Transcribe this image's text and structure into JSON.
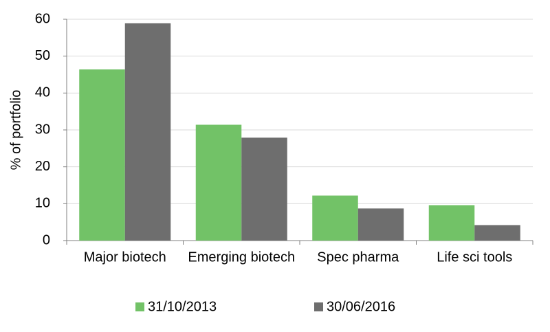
{
  "chart_data": {
    "type": "bar",
    "y_label": "% of portfolio",
    "categories": [
      "Major biotech",
      "Emerging biotech",
      "Spec pharma",
      "Life sci tools"
    ],
    "series": [
      {
        "name": "31/10/2013",
        "color": "#72c267",
        "values": [
          46.4,
          31.4,
          12.2,
          9.6
        ]
      },
      {
        "name": "30/06/2016",
        "color": "#6e6e6e",
        "values": [
          58.9,
          27.9,
          8.7,
          4.2
        ]
      }
    ],
    "ylim": [
      0,
      60
    ],
    "yticks": [
      0,
      10,
      20,
      30,
      40,
      50,
      60
    ],
    "grid": true,
    "legend": "bottom"
  }
}
